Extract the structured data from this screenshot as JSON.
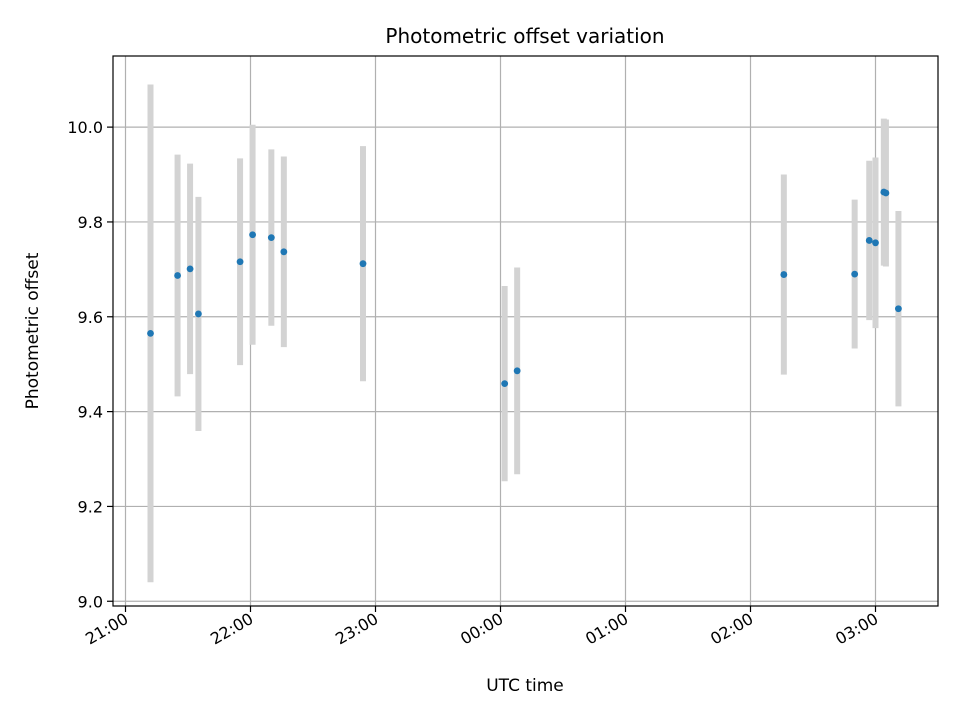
{
  "chart_data": {
    "type": "scatter",
    "title": "Photometric offset variation",
    "xlabel": "UTC time",
    "ylabel": "Photometric offset",
    "x_tick_labels": [
      "21:00",
      "22:00",
      "23:00",
      "00:00",
      "01:00",
      "02:00",
      "03:00"
    ],
    "x_tick_hours": [
      0,
      1,
      2,
      3,
      4,
      5,
      6
    ],
    "x_origin_label": "21:00",
    "xlim_hours": [
      -0.1,
      6.5
    ],
    "y_ticks": [
      9.0,
      9.2,
      9.4,
      9.6,
      9.8,
      10.0
    ],
    "y_tick_labels": [
      "9.0",
      "9.2",
      "9.4",
      "9.6",
      "9.8",
      "10.0"
    ],
    "ylim": [
      8.99,
      10.15
    ],
    "grid": true,
    "colors": {
      "points": "#1f77b4",
      "errorbars": "#d3d3d3",
      "grid": "#b0b0b0"
    },
    "points": [
      {
        "time": "21:12",
        "y": 9.565,
        "err": 0.525
      },
      {
        "time": "21:25",
        "y": 9.687,
        "err": 0.255
      },
      {
        "time": "21:31",
        "y": 9.701,
        "err": 0.222
      },
      {
        "time": "21:35",
        "y": 9.606,
        "err": 0.247
      },
      {
        "time": "21:55",
        "y": 9.716,
        "err": 0.218
      },
      {
        "time": "22:01",
        "y": 9.773,
        "err": 0.232
      },
      {
        "time": "22:10",
        "y": 9.767,
        "err": 0.186
      },
      {
        "time": "22:16",
        "y": 9.737,
        "err": 0.201
      },
      {
        "time": "22:54",
        "y": 9.712,
        "err": 0.248
      },
      {
        "time": "00:02",
        "y": 9.459,
        "err": 0.206
      },
      {
        "time": "00:08",
        "y": 9.486,
        "err": 0.218
      },
      {
        "time": "02:16",
        "y": 9.689,
        "err": 0.211
      },
      {
        "time": "02:50",
        "y": 9.69,
        "err": 0.157
      },
      {
        "time": "02:57",
        "y": 9.761,
        "err": 0.168
      },
      {
        "time": "03:00",
        "y": 9.756,
        "err": 0.18
      },
      {
        "time": "03:04",
        "y": 9.863,
        "err": 0.155
      },
      {
        "time": "03:05",
        "y": 9.861,
        "err": 0.155
      },
      {
        "time": "03:11",
        "y": 9.617,
        "err": 0.206
      }
    ]
  }
}
